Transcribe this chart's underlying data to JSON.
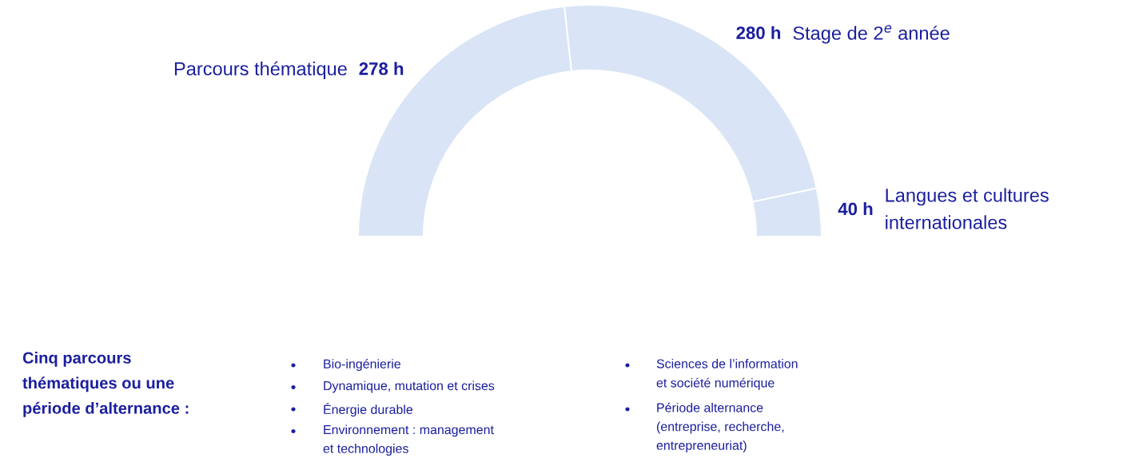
{
  "chart_data": {
    "type": "donut",
    "categories": [
      "Parcours thématique",
      "Stage de 2$^{e}$ année",
      "Langues et cultures\ninternationales"
    ],
    "values": [
      278,
      280,
      40
    ],
    "colors": [
      "#d9e5f6",
      "#d9e5f6",
      "#d9e5f6"
    ],
    "value_labels": [
      "278 h",
      "280 h",
      "40 h"
    ],
    "annotations": [
      "Cinq parcours\nthématiques ou une\npériode d’alternance :",
      "Bio-ingénierie",
      "Dynamique, mutation et crises",
      "Énergie durable",
      "Environnement : management\net technologies",
      "Sciences de l’information\net société numérique",
      "Période alternance\n(entreprise, recherche,\nentrepreneuriat)"
    ]
  }
}
